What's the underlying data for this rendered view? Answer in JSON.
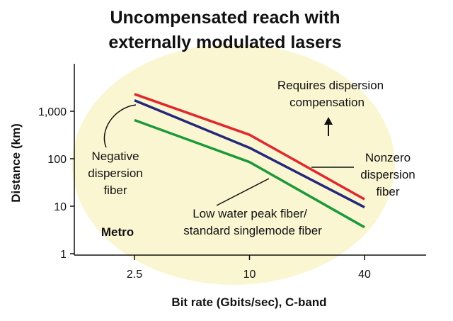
{
  "chart_data": {
    "type": "line",
    "title_lines": [
      "Uncompensated reach with",
      "externally modulated lasers"
    ],
    "xlabel": "Bit rate (Gbits/sec), C-band",
    "ylabel": "Distance (km)",
    "x_scale": "log",
    "y_scale": "log",
    "x_ticks": [
      "2.5",
      "10",
      "40"
    ],
    "x_tick_values": [
      2.5,
      10,
      40
    ],
    "y_ticks": [
      "1",
      "10",
      "100",
      "1,000"
    ],
    "y_tick_values": [
      1,
      10,
      100,
      1000
    ],
    "grid": false,
    "background_highlight_color": "#fbf6d2",
    "series": [
      {
        "name": "Nonzero dispersion fiber",
        "color": "#e0282e",
        "x": [
          2.5,
          10,
          40
        ],
        "y": [
          2300,
          320,
          14
        ]
      },
      {
        "name": "Negative dispersion fiber",
        "color": "#24287a",
        "x": [
          2.5,
          10,
          40
        ],
        "y": [
          1700,
          170,
          9.5
        ]
      },
      {
        "name": "Low water peak fiber/ standard singlemode fiber",
        "color": "#1a9a3a",
        "x": [
          2.5,
          10,
          40
        ],
        "y": [
          650,
          85,
          3.6
        ]
      }
    ],
    "annotations": {
      "requires_comp": [
        "Requires dispersion",
        "compensation"
      ],
      "negative": [
        "Negative",
        "dispersion",
        "fiber"
      ],
      "nonzero": [
        "Nonzero",
        "dispersion",
        "fiber"
      ],
      "lowwater": [
        "Low water peak fiber/",
        "standard singlemode fiber"
      ],
      "metro": "Metro"
    }
  }
}
